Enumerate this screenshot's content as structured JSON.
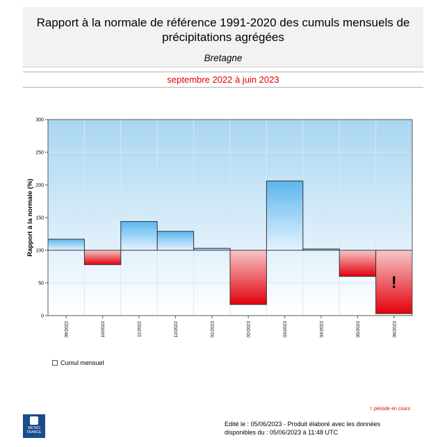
{
  "header": {
    "title_line1": "Rapport à la normale de référence 1991-2020 des cumuls mensuels de",
    "title_line2": "précipitations agrégées",
    "region": "Bretagne",
    "period": "septembre 2022 à juin 2023"
  },
  "chart_data": {
    "type": "bar",
    "baseline": 100,
    "categories": [
      "09/2022",
      "10/2022",
      "11/2022",
      "12/2022",
      "01/2023",
      "02/2023",
      "03/2023",
      "04/2023",
      "05/2023",
      "06/2023"
    ],
    "values": [
      117,
      78,
      144,
      129,
      103,
      17,
      206,
      102,
      60,
      3
    ],
    "in_progress": [
      false,
      false,
      false,
      false,
      false,
      false,
      false,
      false,
      false,
      true
    ],
    "ylabel": "Rapport à la normale (%)",
    "ylim": [
      0,
      300
    ],
    "yticks": [
      0,
      50,
      100,
      150,
      200,
      250,
      300
    ],
    "grid": true,
    "colors": {
      "above": "#8fcdf2",
      "below": "#e3000b",
      "background_top": "#a9d6f2",
      "background_bottom": "#ffffff"
    },
    "warning_marker": "!"
  },
  "legend": {
    "label": "Cumul mensuel"
  },
  "notes": {
    "in_progress": "!: période en cours"
  },
  "footer": {
    "line1": "Edité le : 05/06/2023 - Produit élaboré avec les données",
    "line2": "disponibles du : 05/06/2023 à 11:48 UTC"
  },
  "logo": {
    "line1": "METEO",
    "line2": "FRANCE",
    "icon": "meteo-france-logo"
  }
}
